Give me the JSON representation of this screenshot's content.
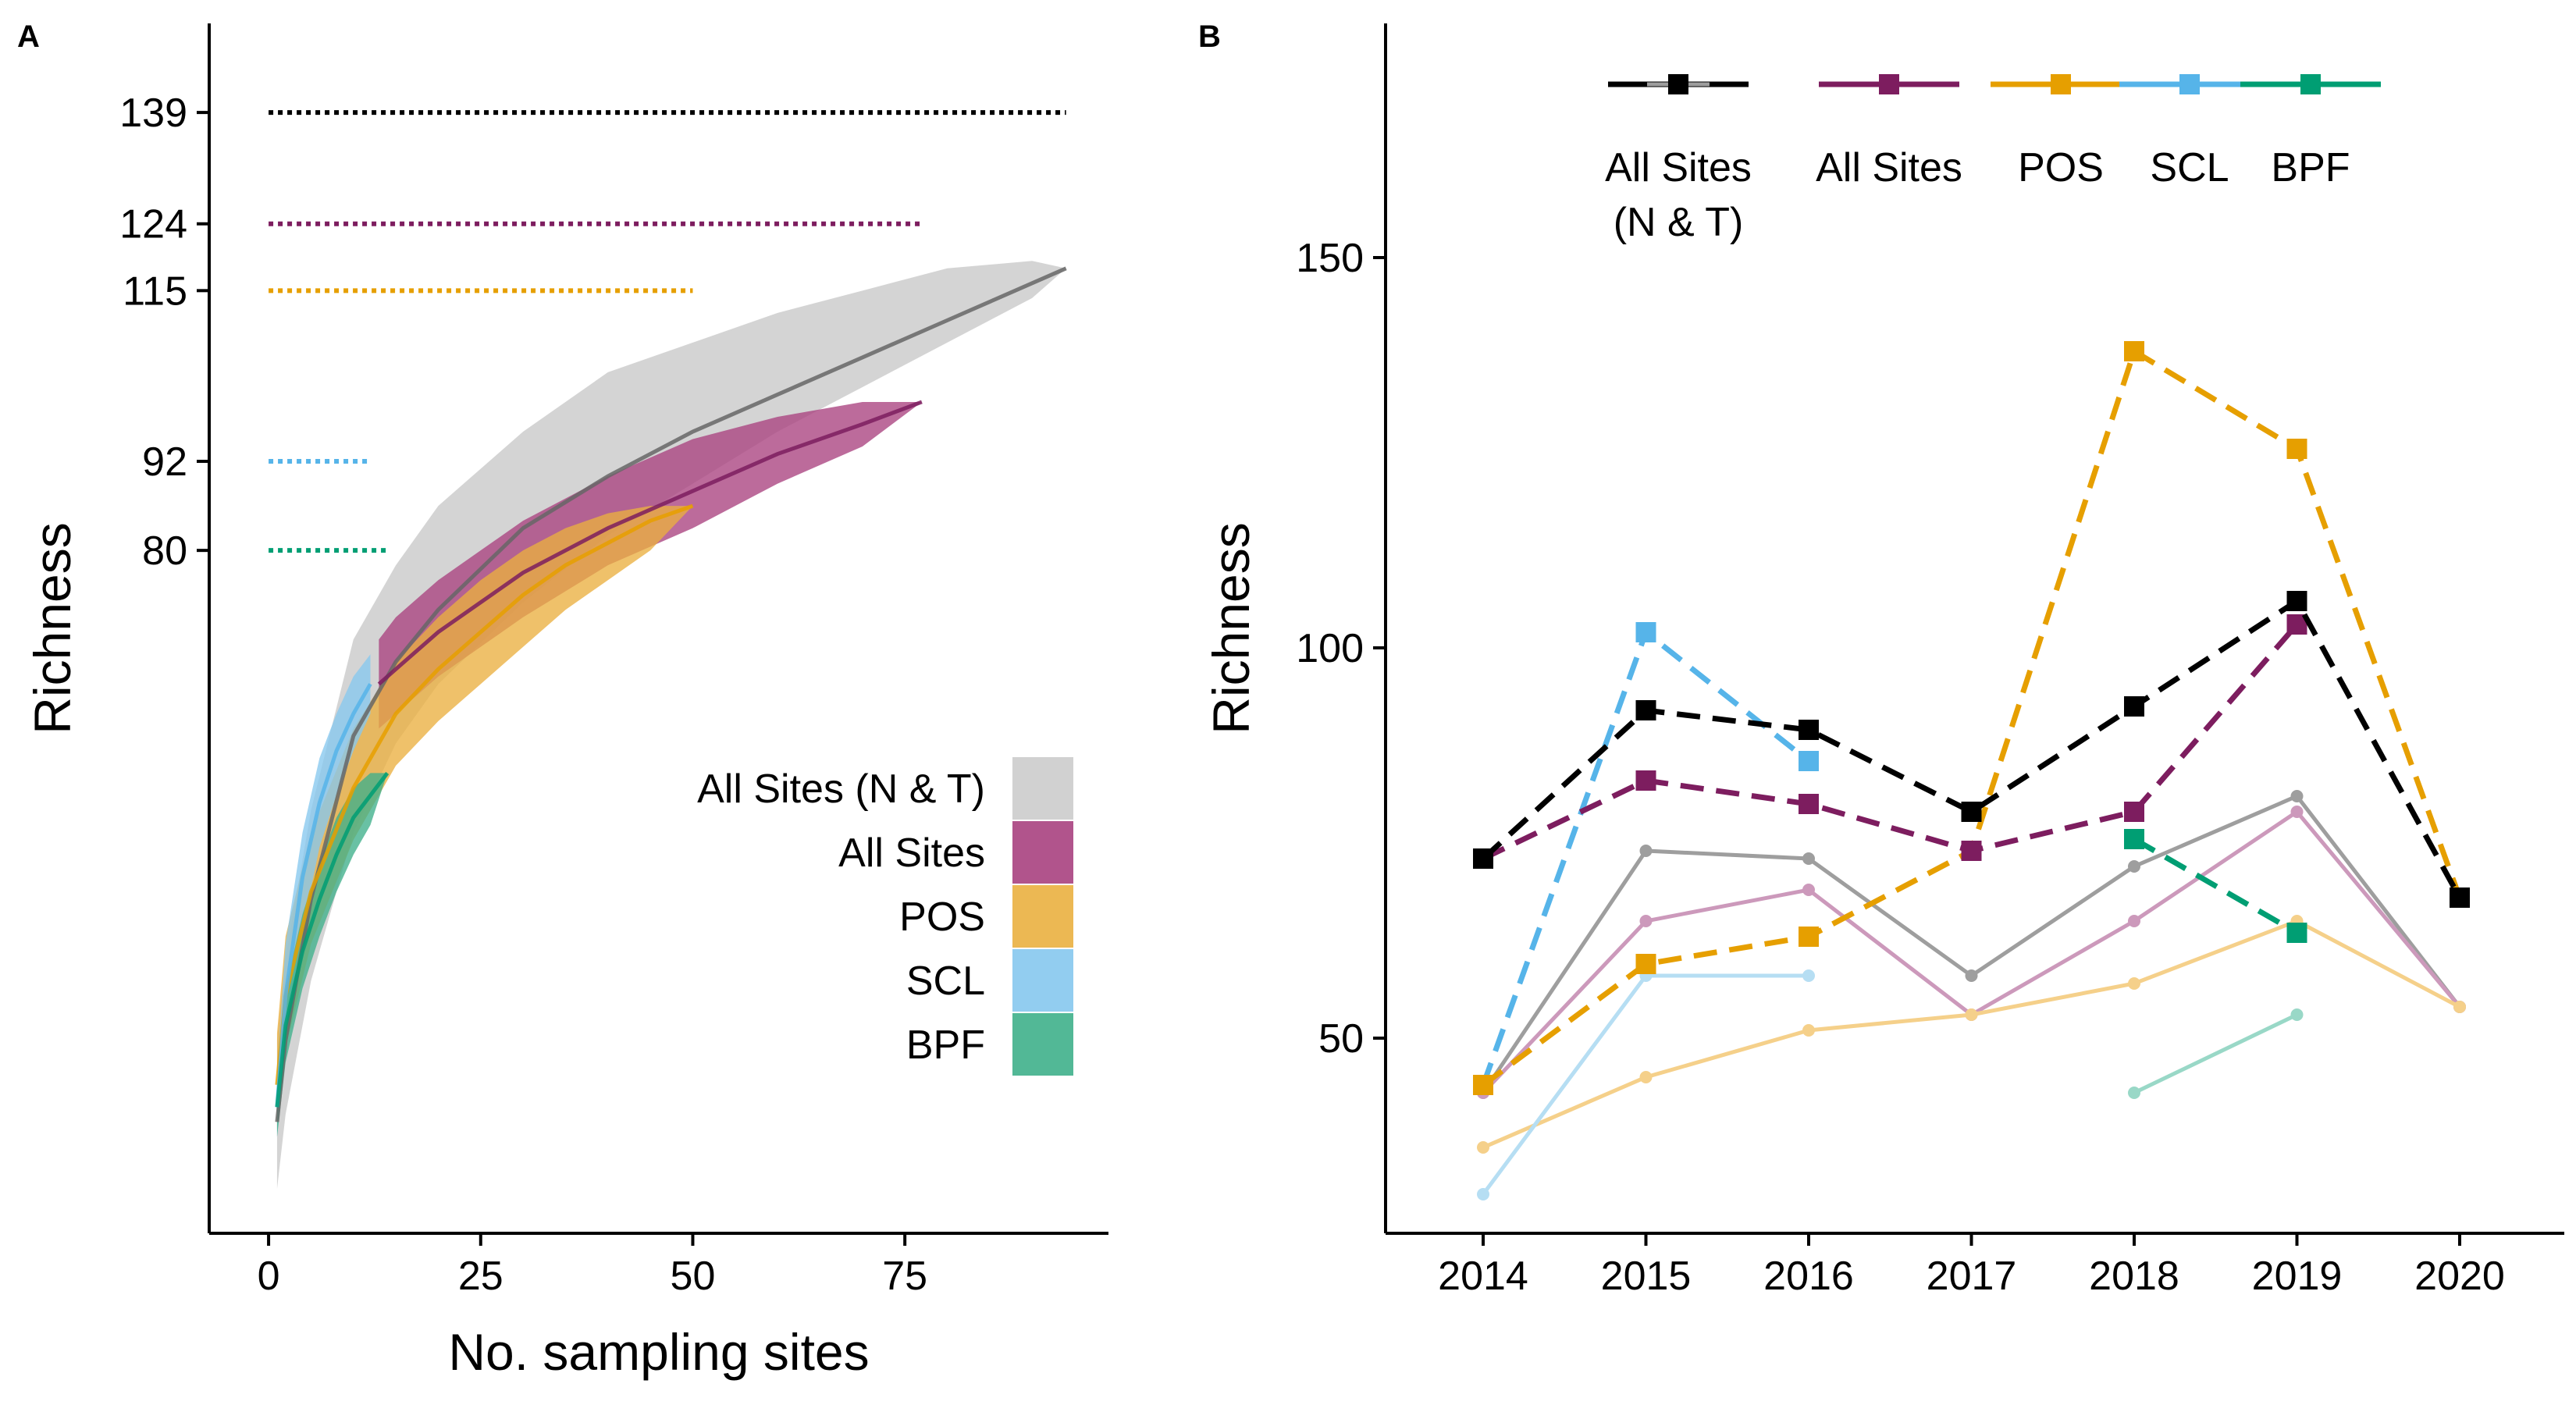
{
  "colors": {
    "all_nt": "#000000",
    "all_nt_light": "#9e9e9e",
    "all_nt_band": "#cccccc",
    "all": "#7d1d5f",
    "all_light": "#cc99bb",
    "all_band": "#a9417f",
    "pos": "#e69f00",
    "pos_light": "#f5d08a",
    "pos_band": "#eab040",
    "scl": "#56b4e9",
    "scl_light": "#b6def3",
    "scl_band": "#86c8ee",
    "bpf": "#009e73",
    "bpf_light": "#99d8c7",
    "bpf_band": "#3fb08b"
  },
  "panels": {
    "a": {
      "letter": "A"
    },
    "b": {
      "letter": "B"
    }
  },
  "chart_data": [
    {
      "type": "area",
      "panel": "A",
      "xlabel": "No. sampling sites",
      "ylabel": "Richness",
      "xlim": [
        -7,
        99
      ],
      "ylim": [
        -12,
        151
      ],
      "x_ticks": [
        0,
        25,
        50,
        75
      ],
      "y_ticks": [
        80,
        92,
        115,
        124,
        139
      ],
      "legend_position": "bottom-right",
      "series": [
        {
          "name": "All Sites (N & T)",
          "key": "all_nt",
          "x": [
            1,
            2,
            5,
            10,
            15,
            20,
            30,
            40,
            50,
            60,
            70,
            80,
            90,
            94
          ],
          "y": [
            3,
            14,
            33,
            55,
            65,
            72,
            83,
            90,
            96,
            101,
            106,
            111,
            116,
            118
          ],
          "lower": [
            -6,
            4,
            22,
            42,
            54,
            62,
            73,
            82,
            89,
            96,
            102,
            108,
            114,
            118
          ],
          "upper": [
            14,
            25,
            45,
            68,
            78,
            86,
            96,
            104,
            108,
            112,
            115,
            118,
            119,
            118
          ],
          "asymptote": 139
        },
        {
          "name": "All Sites",
          "key": "all",
          "x": [
            13,
            15,
            20,
            25,
            30,
            40,
            50,
            60,
            70,
            77
          ],
          "y": [
            62,
            64,
            69,
            73,
            77,
            83,
            88,
            93,
            97,
            100
          ],
          "lower": [
            56,
            58,
            63,
            67,
            71,
            78,
            83,
            89,
            94,
            100
          ],
          "upper": [
            68,
            71,
            76,
            80,
            84,
            90,
            95,
            98,
            100,
            100
          ],
          "asymptote": 124
        },
        {
          "name": "POS",
          "key": "pos",
          "x": [
            1,
            2,
            5,
            10,
            15,
            20,
            25,
            30,
            35,
            40,
            45,
            50
          ],
          "y": [
            8,
            20,
            34,
            48,
            58,
            64,
            69,
            74,
            78,
            81,
            84,
            86
          ],
          "lower": [
            2,
            13,
            27,
            41,
            51,
            57,
            62,
            67,
            72,
            76,
            80,
            86
          ],
          "upper": [
            15,
            28,
            42,
            56,
            65,
            71,
            76,
            80,
            83,
            85,
            86,
            86
          ],
          "asymptote": 115
        },
        {
          "name": "SCL",
          "key": "scl",
          "x": [
            1,
            2,
            4,
            6,
            8,
            10,
            12
          ],
          "y": [
            5,
            20,
            36,
            46,
            53,
            58,
            62
          ],
          "lower": [
            1,
            14,
            29,
            40,
            47,
            53,
            58
          ],
          "upper": [
            10,
            27,
            42,
            52,
            58,
            63,
            66
          ],
          "asymptote": 92
        },
        {
          "name": "BPF",
          "key": "bpf",
          "x": [
            1,
            2,
            4,
            6,
            8,
            10,
            12,
            14
          ],
          "y": [
            5,
            16,
            26,
            33,
            39,
            44,
            47,
            50
          ],
          "lower": [
            1,
            11,
            21,
            28,
            34,
            39,
            43,
            50
          ],
          "upper": [
            9,
            21,
            31,
            38,
            44,
            48,
            50,
            50
          ],
          "asymptote": 80
        }
      ]
    },
    {
      "type": "line",
      "panel": "B",
      "xlabel": "",
      "ylabel": "Richness",
      "categories": [
        "2014",
        "2015",
        "2016",
        "2017",
        "2018",
        "2019",
        "2020"
      ],
      "ylim": [
        25,
        180
      ],
      "y_ticks": [
        50,
        100,
        150
      ],
      "legend_position": "top",
      "series": [
        {
          "name": "All Sites",
          "name_line2": "(N & T)",
          "key": "all_nt",
          "style": "dashed",
          "values": [
            73,
            92,
            89.5,
            79,
            92.5,
            106,
            68
          ]
        },
        {
          "name": "All Sites",
          "name_line2": "",
          "key": "all",
          "style": "dashed",
          "values": [
            73,
            83,
            80,
            74,
            79,
            103,
            null
          ]
        },
        {
          "name": "POS",
          "name_line2": "",
          "key": "pos",
          "style": "dashed",
          "values": [
            44,
            59.5,
            63,
            74,
            138,
            125.5,
            68
          ]
        },
        {
          "name": "SCL",
          "name_line2": "",
          "key": "scl",
          "style": "dashed",
          "values": [
            44,
            102,
            85.5,
            null,
            null,
            null,
            null
          ]
        },
        {
          "name": "BPF",
          "name_line2": "",
          "key": "bpf",
          "style": "dashed",
          "values": [
            null,
            null,
            null,
            null,
            75.5,
            63.5,
            null
          ]
        },
        {
          "key": "all_nt",
          "style": "faint",
          "values": [
            43,
            74,
            73,
            58,
            72,
            81,
            54
          ]
        },
        {
          "key": "all",
          "style": "faint",
          "values": [
            43,
            65,
            69,
            53,
            65,
            79,
            54
          ]
        },
        {
          "key": "pos",
          "style": "faint",
          "values": [
            36,
            45,
            51,
            53,
            57,
            65,
            54
          ]
        },
        {
          "key": "scl",
          "style": "faint",
          "values": [
            30,
            58,
            58,
            null,
            null,
            null,
            null
          ]
        },
        {
          "key": "bpf",
          "style": "faint",
          "values": [
            null,
            null,
            null,
            null,
            43,
            53,
            null
          ]
        }
      ]
    }
  ]
}
